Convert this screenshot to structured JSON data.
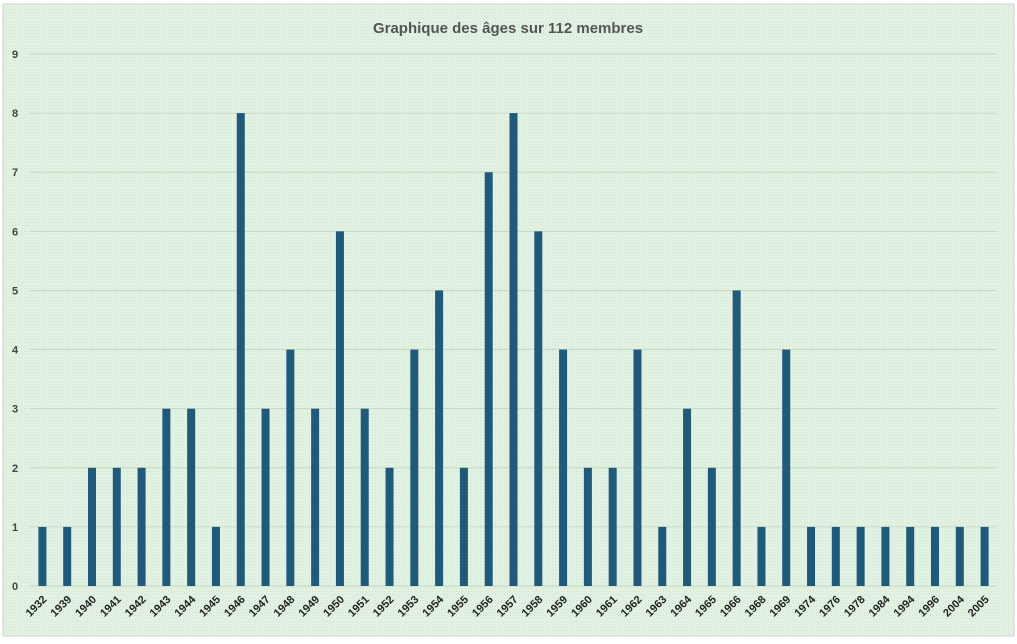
{
  "chart_data": {
    "type": "bar",
    "title": "Graphique des âges sur 112 membres",
    "xlabel": "",
    "ylabel": "",
    "ylim": [
      0,
      9
    ],
    "yticks": [
      0,
      1,
      2,
      3,
      4,
      5,
      6,
      7,
      8,
      9
    ],
    "grid": true,
    "legend": "none",
    "categories": [
      "1932",
      "1939",
      "1940",
      "1941",
      "1942",
      "1943",
      "1944",
      "1945",
      "1946",
      "1947",
      "1948",
      "1949",
      "1950",
      "1951",
      "1952",
      "1953",
      "1954",
      "1955",
      "1956",
      "1957",
      "1958",
      "1959",
      "1960",
      "1961",
      "1962",
      "1963",
      "1964",
      "1965",
      "1966",
      "1968",
      "1969",
      "1974",
      "1976",
      "1978",
      "1984",
      "1994",
      "1996",
      "2004",
      "2005"
    ],
    "values": [
      1,
      1,
      2,
      2,
      2,
      3,
      3,
      1,
      8,
      3,
      4,
      3,
      6,
      3,
      2,
      4,
      5,
      2,
      7,
      8,
      6,
      4,
      2,
      2,
      4,
      1,
      3,
      2,
      5,
      1,
      4,
      1,
      1,
      1,
      1,
      1,
      1,
      1,
      1
    ],
    "colors": {
      "bar": "#1f5a7a",
      "background": "#e6f3e6",
      "pattern": "#c9e5c9",
      "gridline": "#c7d9c7"
    }
  }
}
